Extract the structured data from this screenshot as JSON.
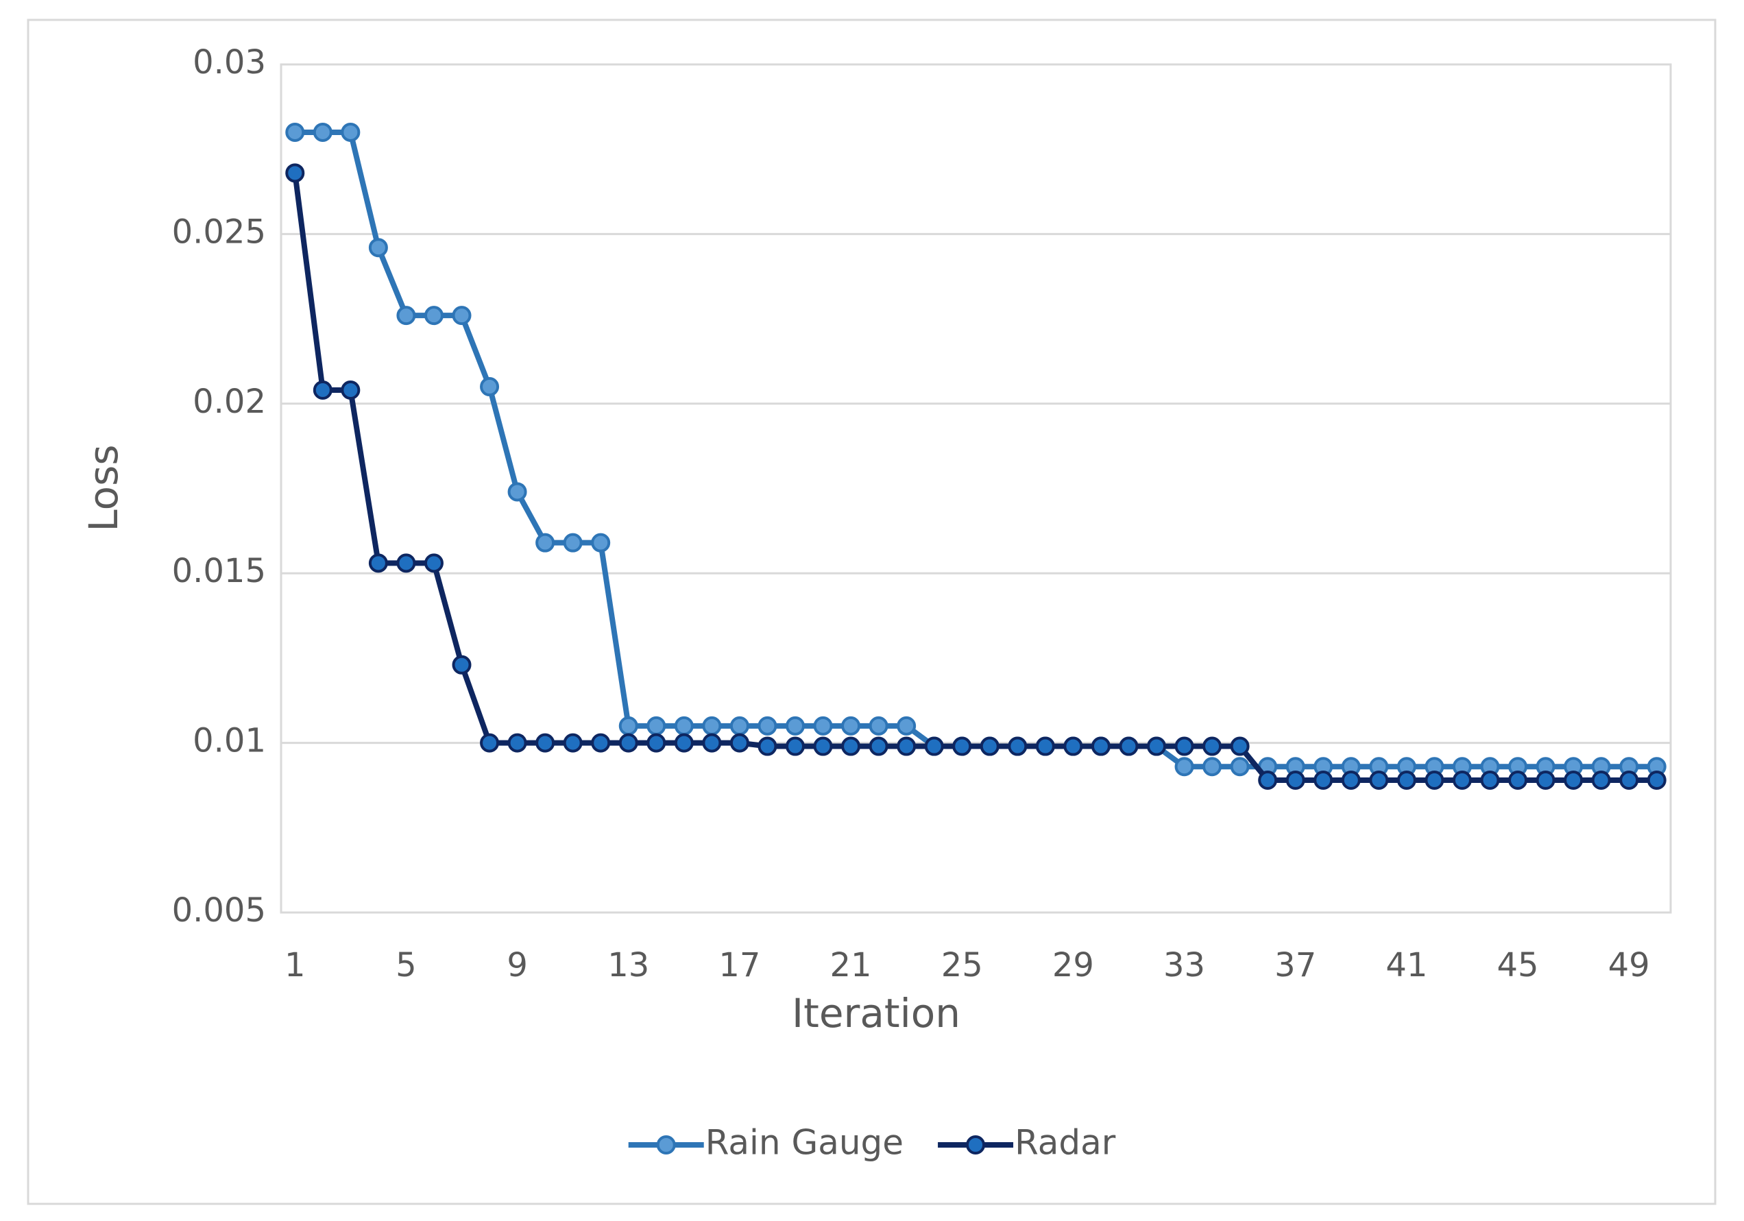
{
  "chart_data": {
    "type": "line",
    "x_label": "Iteration",
    "y_label": "Loss",
    "x": [
      1,
      2,
      3,
      4,
      5,
      6,
      7,
      8,
      9,
      10,
      11,
      12,
      13,
      14,
      15,
      16,
      17,
      18,
      19,
      20,
      21,
      22,
      23,
      24,
      25,
      26,
      27,
      28,
      29,
      30,
      31,
      32,
      33,
      34,
      35,
      36,
      37,
      38,
      39,
      40,
      41,
      42,
      43,
      44,
      45,
      46,
      47,
      48,
      49,
      50
    ],
    "xlim": [
      0.5,
      50.5
    ],
    "xticks": [
      1,
      5,
      9,
      13,
      17,
      21,
      25,
      29,
      33,
      37,
      41,
      45,
      49
    ],
    "ylim": [
      0.005,
      0.03
    ],
    "yticks": [
      0.005,
      0.01,
      0.015,
      0.02,
      0.025,
      0.03
    ],
    "grid": true,
    "legend": "bottom",
    "series": [
      {
        "name": "Rain Gauge",
        "color": "#2e75b6",
        "marker_color": "#5b9bd5",
        "values": [
          0.028,
          0.028,
          0.028,
          0.0246,
          0.0226,
          0.0226,
          0.0226,
          0.0205,
          0.0174,
          0.0159,
          0.0159,
          0.0159,
          0.0105,
          0.0105,
          0.0105,
          0.0105,
          0.0105,
          0.0105,
          0.0105,
          0.0105,
          0.0105,
          0.0105,
          0.0105,
          0.0099,
          0.0099,
          0.0099,
          0.0099,
          0.0099,
          0.0099,
          0.0099,
          0.0099,
          0.0099,
          0.0093,
          0.0093,
          0.0093,
          0.0093,
          0.0093,
          0.0093,
          0.0093,
          0.0093,
          0.0093,
          0.0093,
          0.0093,
          0.0093,
          0.0093,
          0.0093,
          0.0093,
          0.0093,
          0.0093,
          0.0093
        ]
      },
      {
        "name": "Radar",
        "color": "#0e2660",
        "marker_color": "#1f6fc0",
        "values": [
          0.0268,
          0.0204,
          0.0204,
          0.0153,
          0.0153,
          0.0153,
          0.0123,
          0.01,
          0.01,
          0.01,
          0.01,
          0.01,
          0.01,
          0.01,
          0.01,
          0.01,
          0.01,
          0.0099,
          0.0099,
          0.0099,
          0.0099,
          0.0099,
          0.0099,
          0.0099,
          0.0099,
          0.0099,
          0.0099,
          0.0099,
          0.0099,
          0.0099,
          0.0099,
          0.0099,
          0.0099,
          0.0099,
          0.0099,
          0.0089,
          0.0089,
          0.0089,
          0.0089,
          0.0089,
          0.0089,
          0.0089,
          0.0089,
          0.0089,
          0.0089,
          0.0089,
          0.0089,
          0.0089,
          0.0089,
          0.0089
        ]
      }
    ]
  }
}
